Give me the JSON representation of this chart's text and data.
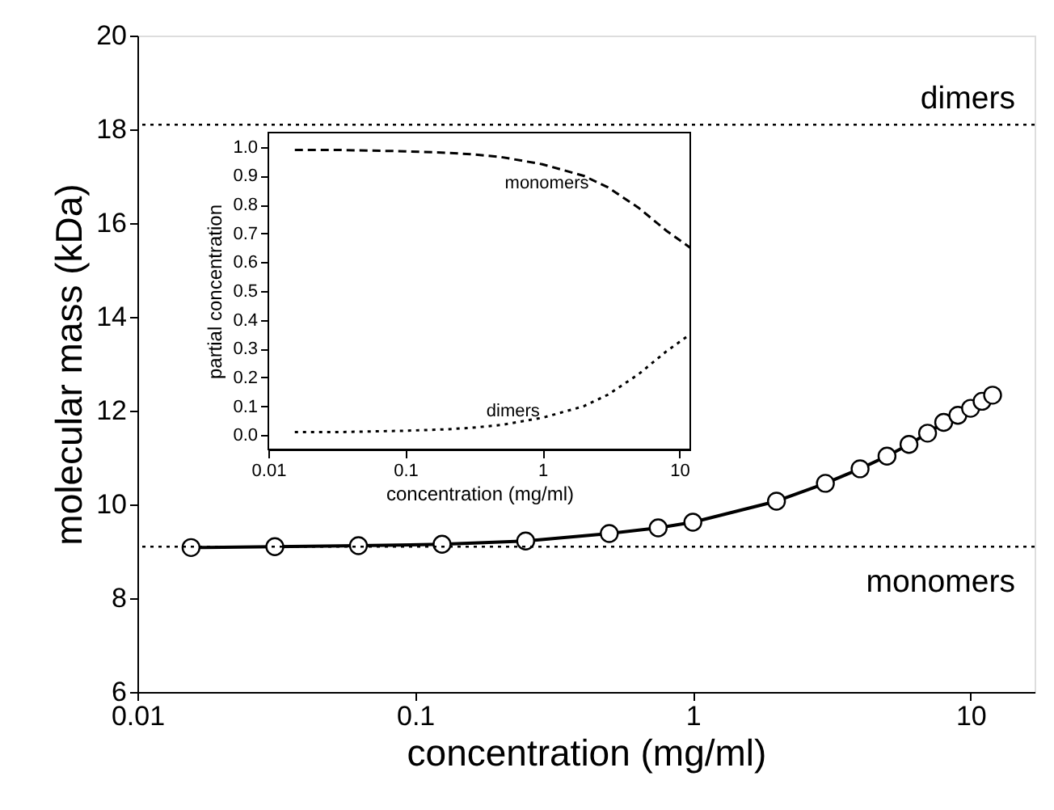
{
  "chart_data": [
    {
      "type": "scatter",
      "xlabel": "concentration (mg/ml)",
      "ylabel": "molecular mass (kDa)",
      "log": "x",
      "x": [
        0.0156,
        0.03125,
        0.0625,
        0.125,
        0.25,
        0.5,
        0.75,
        1,
        2,
        3,
        4,
        5,
        6,
        7,
        8,
        9,
        10,
        11,
        12
      ],
      "xlim": [
        0.01,
        17
      ],
      "xticks": [
        0.01,
        0.1,
        1,
        10
      ],
      "ylim": [
        6,
        20
      ],
      "yticks": [
        6,
        8,
        10,
        12,
        14,
        16,
        18,
        20
      ],
      "series": [
        {
          "type": "line",
          "marker": "circle",
          "line_style": "solid",
          "color": "#000000",
          "values": [
            9.08,
            9.1,
            9.12,
            9.15,
            9.22,
            9.38,
            9.5,
            9.62,
            10.07,
            10.45,
            10.76,
            11.03,
            11.28,
            11.52,
            11.75,
            11.9,
            12.05,
            12.2,
            12.33
          ]
        }
      ],
      "ref_lines": [
        {
          "axis": "y",
          "value": 18.1,
          "label": "dimers",
          "line_style": "dotted"
        },
        {
          "axis": "y",
          "value": 9.1,
          "label": "monomers",
          "line_style": "dotted"
        }
      ],
      "grid": false
    },
    {
      "type": "line",
      "xlabel": "concentration (mg/ml)",
      "ylabel": "partial concentration",
      "log": "x",
      "x": [
        0.0156,
        0.03,
        0.1,
        0.2,
        0.3,
        0.5,
        1,
        2,
        3,
        5,
        8,
        12
      ],
      "xlim": [
        0.01,
        12
      ],
      "xticks": [
        0.01,
        0.1,
        1,
        10
      ],
      "ylim": [
        -0.05,
        1.05
      ],
      "yticks": [
        {
          "value": 0,
          "label": "0.0"
        },
        0.1,
        0.2,
        0.3,
        0.4,
        0.5,
        0.6,
        0.7,
        0.8,
        0.9,
        {
          "value": 1,
          "label": "1.0"
        }
      ],
      "series": [
        {
          "line_style": "dashed",
          "color": "#000000",
          "values": [
            0.99,
            0.99,
            0.985,
            0.98,
            0.975,
            0.965,
            0.94,
            0.9,
            0.86,
            0.79,
            0.71,
            0.65
          ]
        },
        {
          "line_style": "dotted",
          "color": "#000000",
          "values": [
            0.01,
            0.01,
            0.015,
            0.02,
            0.025,
            0.035,
            0.06,
            0.1,
            0.14,
            0.21,
            0.29,
            0.35
          ]
        }
      ],
      "annotations": [
        "monomers",
        "dimers"
      ],
      "grid": false
    }
  ]
}
